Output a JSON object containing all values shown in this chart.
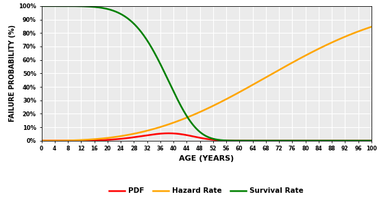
{
  "title": "",
  "xlabel": "AGE (YEARS)",
  "ylabel": "FAILURE PROBABILITY (%)",
  "x_ticks": [
    0,
    4,
    8,
    12,
    16,
    20,
    24,
    28,
    32,
    36,
    40,
    44,
    48,
    52,
    56,
    60,
    64,
    68,
    72,
    76,
    80,
    84,
    88,
    92,
    96,
    100
  ],
  "y_ticks": [
    0.0,
    0.1,
    0.2,
    0.3,
    0.4,
    0.5,
    0.6,
    0.7,
    0.8,
    0.9,
    1.0
  ],
  "y_tick_labels": [
    "0%",
    "10%",
    "20%",
    "30%",
    "40%",
    "50%",
    "60%",
    "70%",
    "80%",
    "90%",
    "100%"
  ],
  "pdf_color": "#FF0000",
  "hazard_color": "#FFA500",
  "survival_color": "#008000",
  "background_color": "#EBEBEB",
  "survival_eta": 40,
  "survival_beta": 5.5,
  "hazard_eta": 80,
  "hazard_beta": 2.8,
  "pdf_scale": 0.055,
  "legend_labels": [
    "PDF",
    "Hazard Rate",
    "Survival Rate"
  ],
  "line_width": 1.8
}
